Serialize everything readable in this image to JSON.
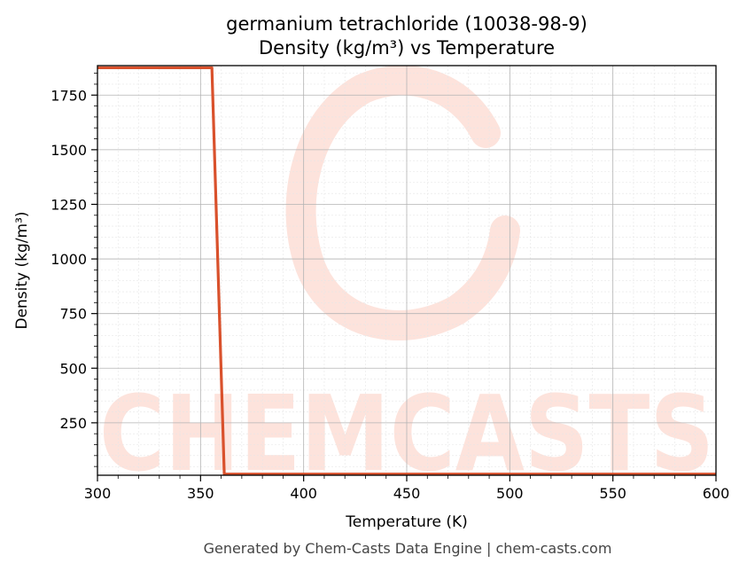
{
  "chart_data": {
    "type": "line",
    "title": "germanium tetrachloride (10038-98-9)",
    "subtitle": "Density (kg/m³) vs Temperature",
    "xlabel": "Temperature (K)",
    "ylabel": "Density (kg/m³)",
    "xlim": [
      300,
      600
    ],
    "ylim": [
      10,
      1885
    ],
    "x_ticks": [
      300,
      350,
      400,
      450,
      500,
      550,
      600
    ],
    "y_ticks": [
      250,
      500,
      750,
      1000,
      1250,
      1500,
      1750
    ],
    "grid": true,
    "series": [
      {
        "color": "#d9512c",
        "x": [
          300,
          355.5,
          361.5,
          600
        ],
        "y": [
          1875,
          1875,
          15,
          15
        ]
      }
    ]
  },
  "watermark": {
    "text": "CHEMCASTS",
    "color": "#fde3dc"
  },
  "footer": "Generated by Chem-Casts Data Engine | chem-casts.com"
}
